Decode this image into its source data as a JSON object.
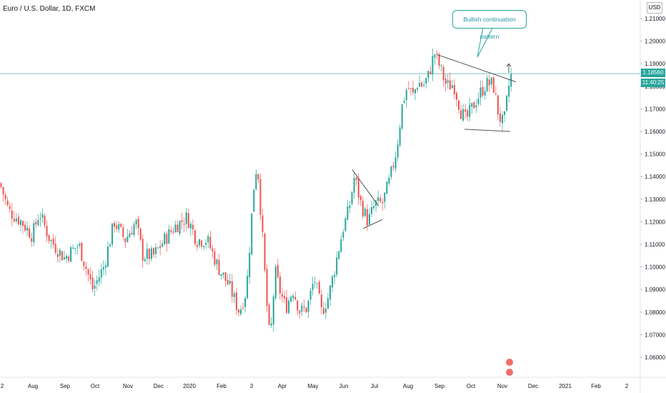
{
  "header": {
    "title": "Euro / U.S. Dollar, 1D, FXCM"
  },
  "currency": "USD",
  "price_label": "1.18560",
  "time_label": "11:40:25",
  "callout_text": "Bullish continuation pattern",
  "colors": {
    "up": "#26a69a",
    "down": "#ef5350",
    "line": "#555555",
    "current_price": "#26a69a",
    "callout": "#26a69a"
  },
  "chart_data": {
    "type": "candlestick",
    "current_price": 1.1856,
    "ylim": [
      1.053,
      1.215
    ],
    "y_ticks": [
      "1.21000",
      "1.20000",
      "1.19000",
      "1.18000",
      "1.17000",
      "1.16000",
      "1.15000",
      "1.14000",
      "1.13000",
      "1.12000",
      "1.11000",
      "1.10000",
      "1.09000",
      "1.08000",
      "1.07000",
      "1.06000"
    ],
    "x_ticks": [
      "2",
      "Aug",
      "Sep",
      "Oct",
      "Nov",
      "Dec",
      "2020",
      "Feb",
      "3",
      "Apr",
      "May",
      "Jun",
      "Jul",
      "Aug",
      "Sep",
      "Oct",
      "Nov",
      "Dec",
      "2021",
      "Feb",
      "2"
    ],
    "price_path": [
      [
        0,
        1.137
      ],
      [
        12,
        1.125
      ],
      [
        30,
        1.12
      ],
      [
        45,
        1.114
      ],
      [
        55,
        1.124
      ],
      [
        70,
        1.112
      ],
      [
        90,
        1.104
      ],
      [
        110,
        1.11
      ],
      [
        130,
        1.09
      ],
      [
        145,
        1.1
      ],
      [
        160,
        1.12
      ],
      [
        175,
        1.112
      ],
      [
        190,
        1.12
      ],
      [
        200,
        1.105
      ],
      [
        215,
        1.105
      ],
      [
        230,
        1.112
      ],
      [
        245,
        1.118
      ],
      [
        262,
        1.122
      ],
      [
        275,
        1.112
      ],
      [
        290,
        1.112
      ],
      [
        305,
        1.1
      ],
      [
        320,
        1.092
      ],
      [
        335,
        1.08
      ],
      [
        345,
        1.09
      ],
      [
        355,
        1.135
      ],
      [
        360,
        1.147
      ],
      [
        368,
        1.11
      ],
      [
        373,
        1.085
      ],
      [
        378,
        1.066
      ],
      [
        385,
        1.098
      ],
      [
        393,
        1.088
      ],
      [
        400,
        1.082
      ],
      [
        410,
        1.09
      ],
      [
        420,
        1.08
      ],
      [
        430,
        1.082
      ],
      [
        440,
        1.095
      ],
      [
        450,
        1.08
      ],
      [
        460,
        1.087
      ],
      [
        470,
        1.102
      ],
      [
        480,
        1.117
      ],
      [
        488,
        1.125
      ],
      [
        496,
        1.14
      ],
      [
        505,
        1.128
      ],
      [
        515,
        1.12
      ],
      [
        525,
        1.128
      ],
      [
        535,
        1.128
      ],
      [
        545,
        1.138
      ],
      [
        555,
        1.152
      ],
      [
        563,
        1.172
      ],
      [
        570,
        1.18
      ],
      [
        578,
        1.176
      ],
      [
        585,
        1.182
      ],
      [
        592,
        1.18
      ],
      [
        600,
        1.185
      ],
      [
        608,
        1.195
      ],
      [
        615,
        1.189
      ],
      [
        625,
        1.18
      ],
      [
        635,
        1.181
      ],
      [
        645,
        1.169
      ],
      [
        652,
        1.165
      ],
      [
        660,
        1.17
      ],
      [
        670,
        1.176
      ],
      [
        680,
        1.181
      ],
      [
        690,
        1.181
      ],
      [
        698,
        1.167
      ],
      [
        705,
        1.163
      ],
      [
        712,
        1.18
      ],
      [
        716,
        1.1856
      ]
    ],
    "annotations": {
      "triangle_upper": [
        [
          612,
          1.194
        ],
        [
          722,
          1.182
        ]
      ],
      "triangle_lower": [
        [
          650,
          1.161
        ],
        [
          714,
          1.16
        ]
      ],
      "wedge_upper": [
        [
          493,
          1.143
        ],
        [
          530,
          1.127
        ]
      ],
      "wedge_lower": [
        [
          508,
          1.117
        ],
        [
          535,
          1.121
        ]
      ],
      "arrow": [
        [
          712,
          1.186
        ],
        [
          712,
          1.19
        ]
      ]
    }
  }
}
